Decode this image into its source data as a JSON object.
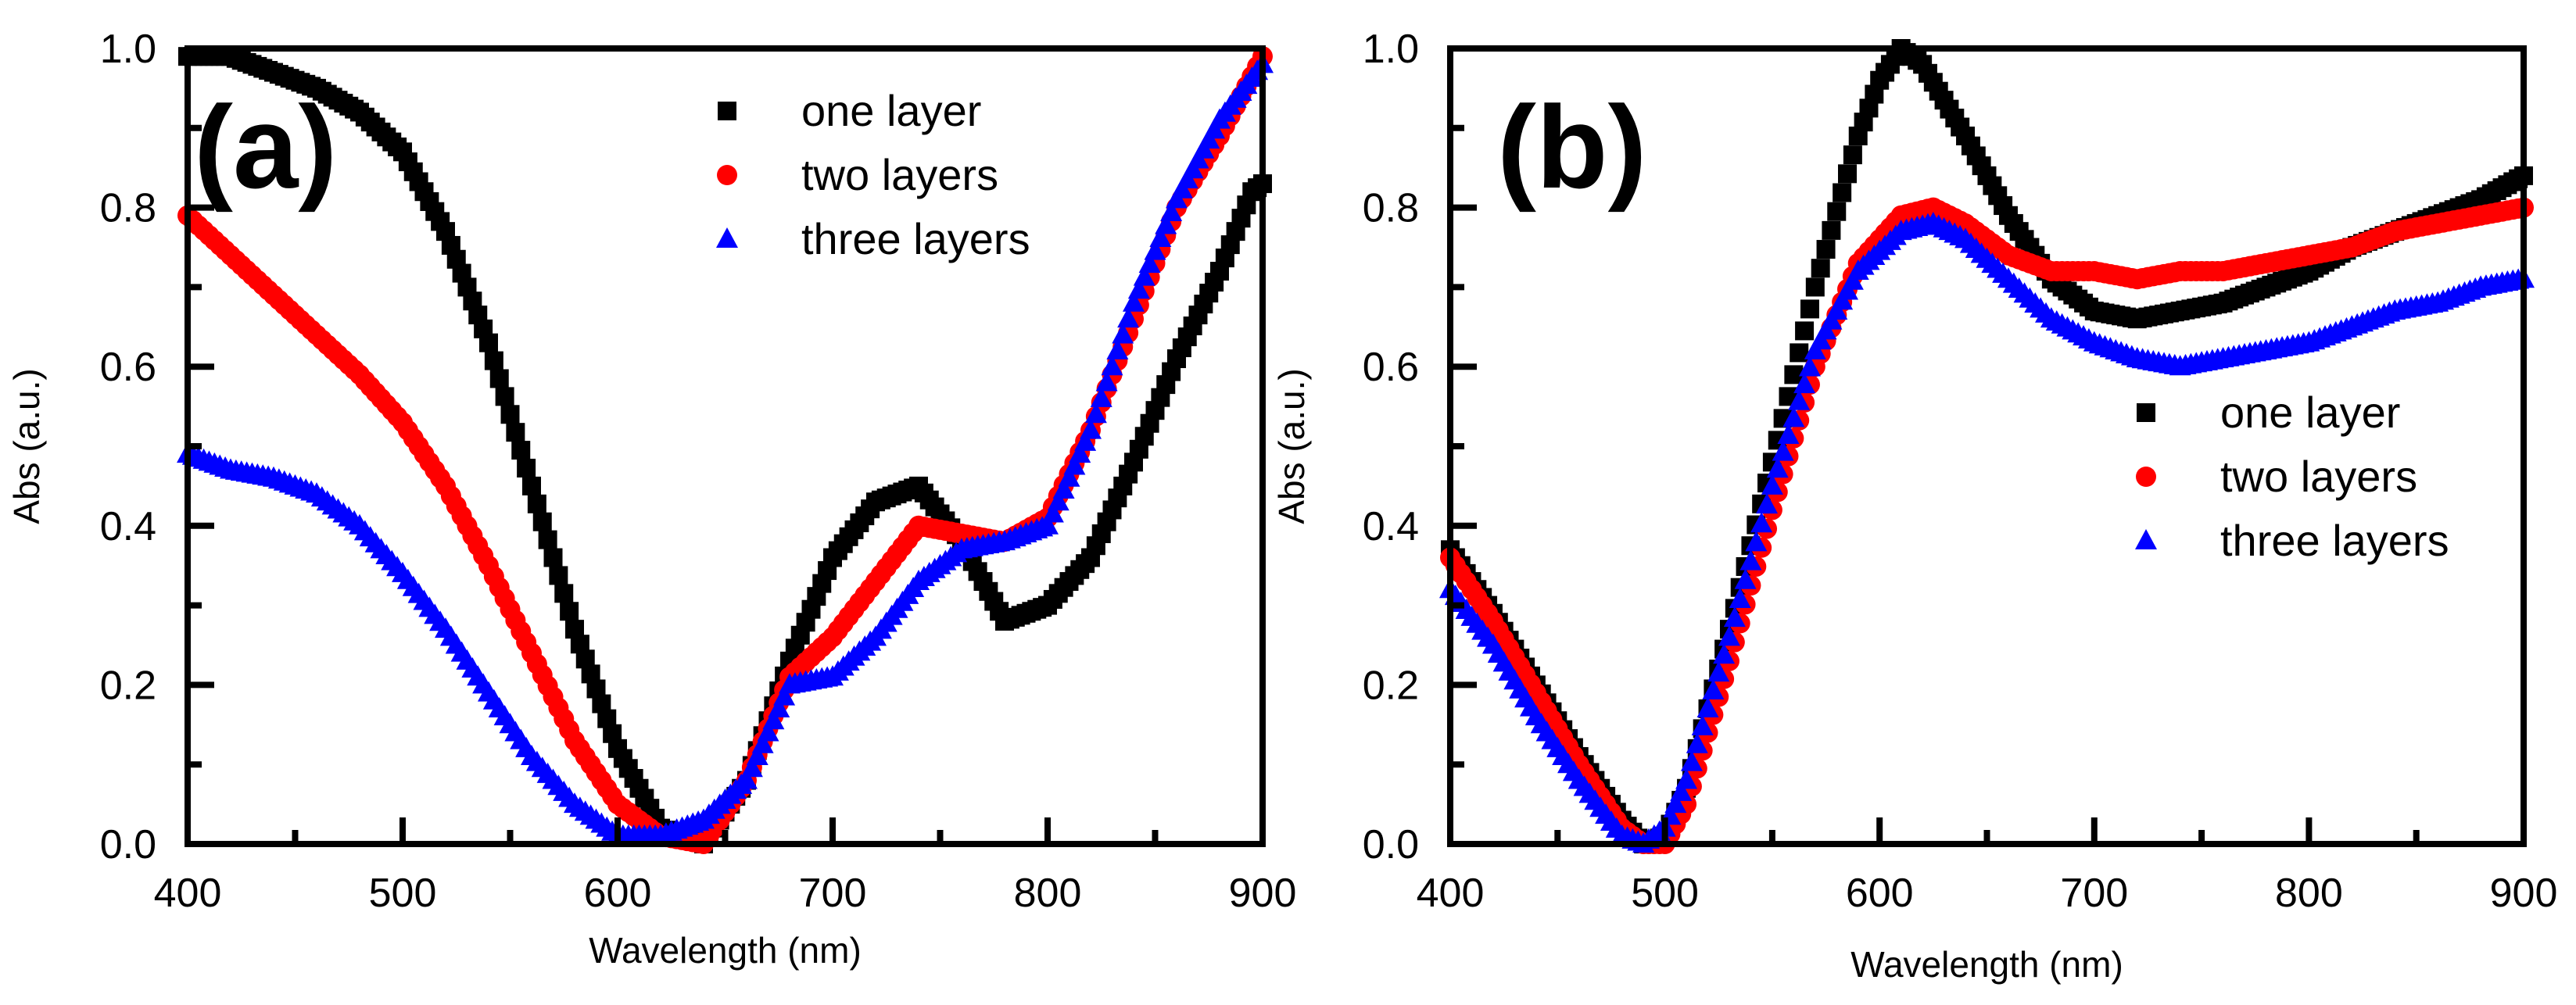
{
  "chart_data": [
    {
      "type": "scatter",
      "panel_label": "(a)",
      "xlabel": "Wavelength (nm)",
      "ylabel": "Abs (a.u.)",
      "xlim": [
        400,
        900
      ],
      "ylim": [
        0.0,
        1.0
      ],
      "xticks": [
        "400",
        "500",
        "600",
        "700",
        "800",
        "900"
      ],
      "yticks": [
        "0.0",
        "0.2",
        "0.4",
        "0.6",
        "0.8",
        "1.0"
      ],
      "legend_position": "top-center",
      "series": [
        {
          "name": "one layer",
          "color": "#000000",
          "marker": "square",
          "x": [
            400,
            420,
            440,
            460,
            480,
            500,
            520,
            540,
            560,
            580,
            600,
            620,
            640,
            660,
            680,
            700,
            720,
            740,
            760,
            780,
            800,
            820,
            840,
            860,
            880,
            895,
            900
          ],
          "y": [
            0.99,
            0.99,
            0.97,
            0.95,
            0.92,
            0.87,
            0.77,
            0.63,
            0.45,
            0.27,
            0.12,
            0.02,
            0.0,
            0.08,
            0.23,
            0.36,
            0.43,
            0.45,
            0.38,
            0.28,
            0.3,
            0.36,
            0.48,
            0.61,
            0.72,
            0.82,
            0.83
          ]
        },
        {
          "name": "two layers",
          "color": "#ff0000",
          "marker": "circle",
          "x": [
            400,
            420,
            440,
            460,
            480,
            500,
            520,
            540,
            560,
            580,
            600,
            620,
            640,
            660,
            680,
            700,
            720,
            740,
            760,
            780,
            800,
            820,
            840,
            860,
            880,
            900
          ],
          "y": [
            0.79,
            0.74,
            0.69,
            0.64,
            0.59,
            0.53,
            0.45,
            0.35,
            0.24,
            0.13,
            0.05,
            0.01,
            0.0,
            0.08,
            0.21,
            0.26,
            0.33,
            0.4,
            0.39,
            0.38,
            0.41,
            0.52,
            0.66,
            0.8,
            0.89,
            0.99
          ]
        },
        {
          "name": "three layers",
          "color": "#0000ff",
          "marker": "triangle",
          "x": [
            400,
            420,
            440,
            460,
            480,
            500,
            520,
            540,
            560,
            580,
            600,
            620,
            640,
            660,
            680,
            700,
            720,
            740,
            760,
            780,
            800,
            820,
            840,
            860,
            880,
            900
          ],
          "y": [
            0.49,
            0.47,
            0.46,
            0.44,
            0.4,
            0.34,
            0.27,
            0.19,
            0.11,
            0.05,
            0.01,
            0.01,
            0.03,
            0.08,
            0.2,
            0.21,
            0.26,
            0.33,
            0.37,
            0.38,
            0.4,
            0.52,
            0.68,
            0.81,
            0.91,
            0.98
          ]
        }
      ]
    },
    {
      "type": "scatter",
      "panel_label": "(b)",
      "xlabel": "Wavelength (nm)",
      "ylabel": "Abs (a.u.)",
      "xlim": [
        400,
        900
      ],
      "ylim": [
        0.0,
        1.0
      ],
      "xticks": [
        "400",
        "500",
        "600",
        "700",
        "800",
        "900"
      ],
      "yticks": [
        "0.0",
        "0.2",
        "0.4",
        "0.6",
        "0.8",
        "1.0"
      ],
      "legend_position": "center-right",
      "series": [
        {
          "name": "one layer",
          "color": "#000000",
          "marker": "square",
          "x": [
            400,
            420,
            440,
            460,
            480,
            490,
            500,
            510,
            530,
            550,
            570,
            590,
            600,
            610,
            620,
            640,
            660,
            680,
            700,
            720,
            740,
            760,
            780,
            800,
            820,
            840,
            860,
            880,
            900
          ],
          "y": [
            0.37,
            0.29,
            0.2,
            0.11,
            0.03,
            0.0,
            0.01,
            0.07,
            0.27,
            0.48,
            0.7,
            0.89,
            0.96,
            1.0,
            0.98,
            0.89,
            0.79,
            0.71,
            0.67,
            0.66,
            0.67,
            0.68,
            0.7,
            0.72,
            0.75,
            0.77,
            0.79,
            0.81,
            0.84
          ]
        },
        {
          "name": "two layers",
          "color": "#ff0000",
          "marker": "circle",
          "x": [
            400,
            420,
            440,
            460,
            480,
            490,
            500,
            510,
            530,
            550,
            570,
            590,
            610,
            625,
            640,
            660,
            680,
            700,
            720,
            740,
            760,
            780,
            800,
            820,
            840,
            860,
            880,
            900
          ],
          "y": [
            0.36,
            0.28,
            0.19,
            0.1,
            0.02,
            0.0,
            0.0,
            0.05,
            0.23,
            0.42,
            0.6,
            0.73,
            0.79,
            0.8,
            0.78,
            0.74,
            0.72,
            0.72,
            0.71,
            0.72,
            0.72,
            0.73,
            0.74,
            0.75,
            0.77,
            0.78,
            0.79,
            0.8
          ]
        },
        {
          "name": "three layers",
          "color": "#0000ff",
          "marker": "triangle",
          "x": [
            400,
            420,
            440,
            460,
            480,
            490,
            500,
            510,
            530,
            550,
            570,
            590,
            610,
            625,
            640,
            660,
            680,
            700,
            720,
            740,
            760,
            780,
            800,
            820,
            840,
            860,
            880,
            900
          ],
          "y": [
            0.32,
            0.25,
            0.16,
            0.08,
            0.01,
            0.0,
            0.02,
            0.08,
            0.26,
            0.45,
            0.62,
            0.72,
            0.77,
            0.78,
            0.76,
            0.71,
            0.66,
            0.63,
            0.61,
            0.6,
            0.61,
            0.62,
            0.63,
            0.65,
            0.67,
            0.68,
            0.7,
            0.71
          ]
        }
      ]
    }
  ]
}
